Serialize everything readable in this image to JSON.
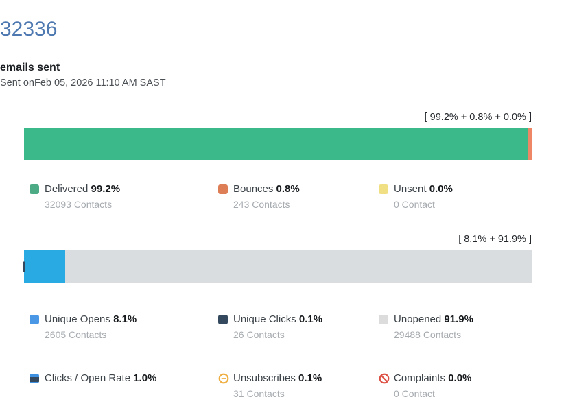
{
  "header": {
    "total": "32336",
    "total_color": "#4e78b0",
    "subtitle": "emails sent",
    "sent_line": "Sent onFeb 05, 2026 11:10 AM SAST"
  },
  "chart_data": [
    {
      "type": "bar",
      "orientation": "horizontal",
      "stacked": true,
      "title": "[ 99.2% + 0.8% + 0.0% ]",
      "xlim": [
        0,
        100
      ],
      "series": [
        {
          "name": "Delivered",
          "value": 99.2,
          "percent_label": "99.2%",
          "contacts": "32093 Contacts",
          "color": "#3cb98a",
          "swatch": "#4cab85"
        },
        {
          "name": "Bounces",
          "value": 0.8,
          "percent_label": "0.8%",
          "contacts": "243 Contacts",
          "color": "#ee8766",
          "swatch": "#dd7e56"
        },
        {
          "name": "Unsent",
          "value": 0.0,
          "percent_label": "0.0%",
          "contacts": "0 Contact",
          "color": "#f0df83",
          "swatch": "#f0df83"
        }
      ]
    },
    {
      "type": "bar",
      "orientation": "horizontal",
      "stacked": true,
      "title": "[ 8.1% + 91.9% ]",
      "xlim": [
        0,
        100
      ],
      "series": [
        {
          "name": "Unique Opens",
          "value": 8.1,
          "percent_label": "8.1%",
          "contacts": "2605 Contacts",
          "color": "#29aae3",
          "swatch": "#4a97e5",
          "render": "segment"
        },
        {
          "name": "Unique Clicks",
          "value": 0.1,
          "percent_label": "0.1%",
          "contacts": "26 Contacts",
          "color": "#34495e",
          "swatch": "#34495e",
          "render": "notch"
        },
        {
          "name": "Unopened",
          "value": 91.9,
          "percent_label": "91.9%",
          "contacts": "29488 Contacts",
          "color": "#dadde0",
          "swatch": "#dcdcdc",
          "render": "segment"
        }
      ]
    }
  ],
  "extra_stats": [
    {
      "label": "Clicks / Open Rate",
      "percent_label": "1.0%",
      "contacts": ""
    },
    {
      "label": "Unsubscribes",
      "percent_label": "0.1%",
      "contacts": "31 Contacts"
    },
    {
      "label": "Complaints",
      "percent_label": "0.0%",
      "contacts": "0 Contact"
    }
  ],
  "icons": {
    "clicks_open_rate_top": "#3d8fe0",
    "clicks_open_rate_mid": "#34495e",
    "clicks_open_rate_bottom": "#3d8fe0",
    "unsubscribes": "#efae41",
    "complaints": "#dd5145"
  }
}
